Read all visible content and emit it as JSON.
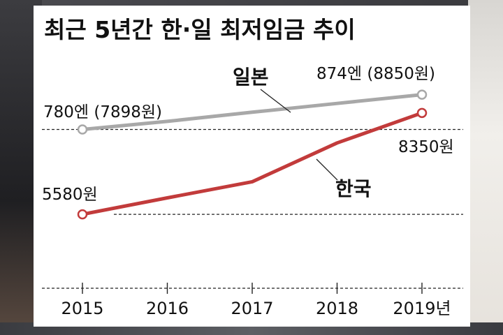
{
  "chart_data": {
    "type": "line",
    "title": "최근 5년간 한·일 최저임금 추이",
    "categories": [
      "2015",
      "2016",
      "2017",
      "2018",
      "2019년"
    ],
    "series": [
      {
        "name": "일본",
        "color": "#a8a8a8",
        "values": [
          7898,
          8120,
          8370,
          8610,
          8850
        ],
        "start_label": "780엔 (7898원)",
        "end_label": "874엔 (8850원)"
      },
      {
        "name": "한국",
        "color": "#c23b3b",
        "values": [
          5580,
          6030,
          6470,
          7530,
          8350
        ],
        "start_label": "5580원",
        "end_label": "8350원"
      }
    ],
    "ylim": [
      4800,
      9300
    ],
    "reference_lines": [
      7898,
      5580
    ],
    "xlabel": "",
    "ylabel": ""
  }
}
